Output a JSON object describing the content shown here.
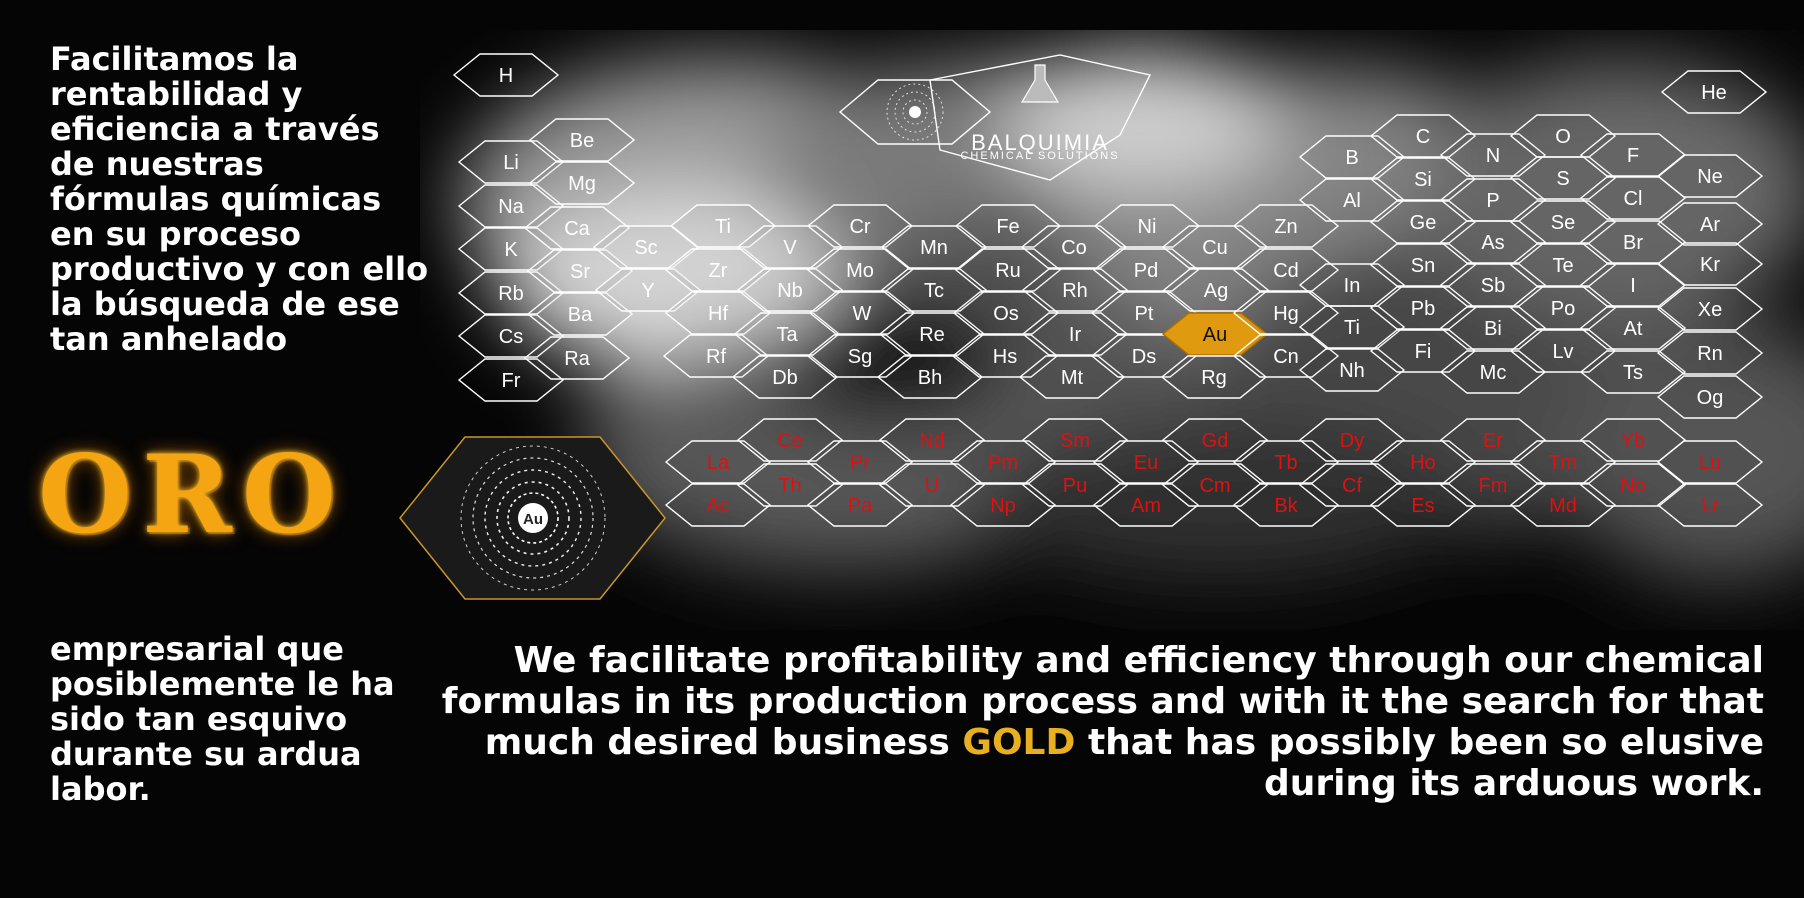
{
  "spanish_top": "Facilitamos la rentabilidad y eficiencia a través de nuestras fórmulas químicas en su proceso productivo y con ello la búsqueda de ese tan anhelado",
  "oro": "ORO",
  "spanish_bottom": "empresarial que posiblemente le ha sido tan esquivo durante su ardua labor.",
  "english": {
    "before": "We facilitate profitability and efficiency through our chemical formulas in its production process and with it the search for that much desired business",
    "highlight": "GOLD",
    "after": "that has possibly been so elusive during its arduous work."
  },
  "logo": {
    "name": "BALQUIMIA",
    "tagline": "CHEMICAL SOLUTIONS",
    "flask_icon": "flask-icon"
  },
  "atom": {
    "symbol": "Au"
  },
  "elements": {
    "main": [
      "H",
      "He",
      "Li",
      "Be",
      "Na",
      "Mg",
      "K",
      "Ca",
      "Rb",
      "Sr",
      "Cs",
      "Ba",
      "Fr",
      "Ra",
      "Sc",
      "Y",
      "Ti",
      "Zr",
      "Hf",
      "Rf",
      "V",
      "Nb",
      "Ta",
      "Db",
      "Cr",
      "Mo",
      "W",
      "Sg",
      "Mn",
      "Tc",
      "Re",
      "Bh",
      "Fe",
      "Ru",
      "Os",
      "Hs",
      "Co",
      "Rh",
      "Ir",
      "Mt",
      "Ni",
      "Pd",
      "Pt",
      "Ds",
      "Cu",
      "Ag",
      "Au",
      "Rg",
      "Zn",
      "Cd",
      "Hg",
      "Cn",
      "B",
      "Al",
      "In",
      "Ti",
      "Nh",
      "C",
      "Si",
      "Ge",
      "Sn",
      "Pb",
      "Fi",
      "N",
      "P",
      "As",
      "Sb",
      "Bi",
      "Mc",
      "O",
      "S",
      "Se",
      "Te",
      "Po",
      "Lv",
      "F",
      "Cl",
      "Br",
      "I",
      "At",
      "Ts",
      "Ne",
      "Ar",
      "Kr",
      "Xe",
      "Rn",
      "Og"
    ],
    "lanthanides": [
      "La",
      "Ce",
      "Pr",
      "Nd",
      "Pm",
      "Sm",
      "Eu",
      "Gd",
      "Tb",
      "Dy",
      "Ho",
      "Er",
      "Tm",
      "Yb",
      "Lu"
    ],
    "actinides": [
      "Ac",
      "Th",
      "Pa",
      "U",
      "Np",
      "Pu",
      "Am",
      "Cm",
      "Bk",
      "Cf",
      "Es",
      "Fm",
      "Md",
      "No",
      "Lr"
    ],
    "highlighted": "Au"
  },
  "colors": {
    "gold": "#e8b020",
    "oro": "#f5a511",
    "lanthanide_text": "#e01010",
    "background": "#050505",
    "highlight_fill": "#e09a10"
  }
}
